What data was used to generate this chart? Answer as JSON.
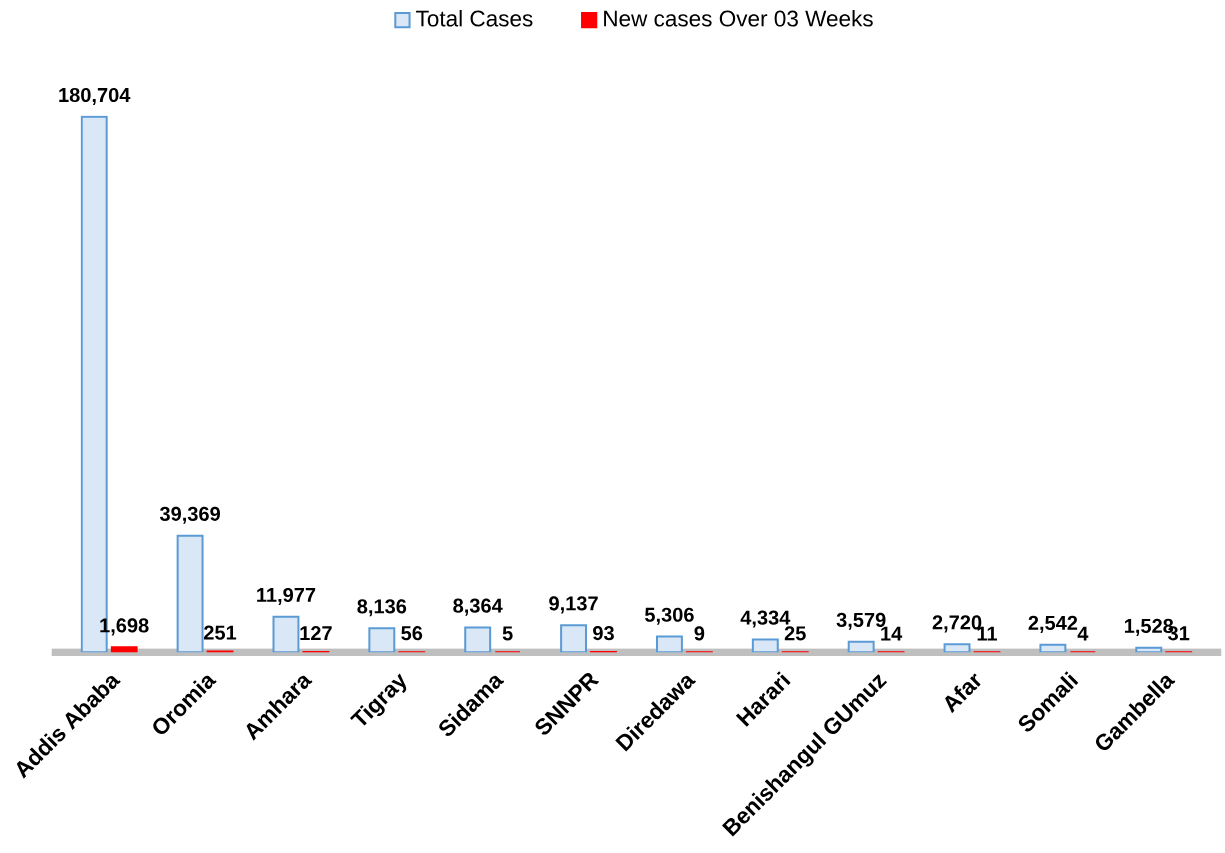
{
  "chart_data": {
    "type": "bar",
    "categories": [
      "Addis Ababa",
      "Oromia",
      "Amhara",
      "Tigray",
      "Sidama",
      "SNNPR",
      "Diredawa",
      "Harari",
      "Benishangul GUmuz",
      "Afar",
      "Somali",
      "Gambella"
    ],
    "series": [
      {
        "name": "Total Cases",
        "color": "#dae7f6",
        "values": [
          180704,
          39369,
          11977,
          8136,
          8364,
          9137,
          5306,
          4334,
          3579,
          2720,
          2542,
          1528
        ],
        "value_labels": [
          "180,704",
          "39,369",
          "11,977",
          "8,136",
          "8,364",
          "9,137",
          "5,306",
          "4,334",
          "3,579",
          "2,720",
          "2,542",
          "1,528"
        ]
      },
      {
        "name": "New cases Over 03 Weeks",
        "color": "#ff0000",
        "values": [
          1698,
          251,
          127,
          56,
          5,
          93,
          9,
          25,
          14,
          11,
          4,
          31
        ],
        "value_labels": [
          "1,698",
          "251",
          "127",
          "56",
          "5",
          "93",
          "9",
          "25",
          "14",
          "11",
          "4",
          "31"
        ]
      }
    ],
    "legend": "top",
    "tick_labels": "x"
  }
}
